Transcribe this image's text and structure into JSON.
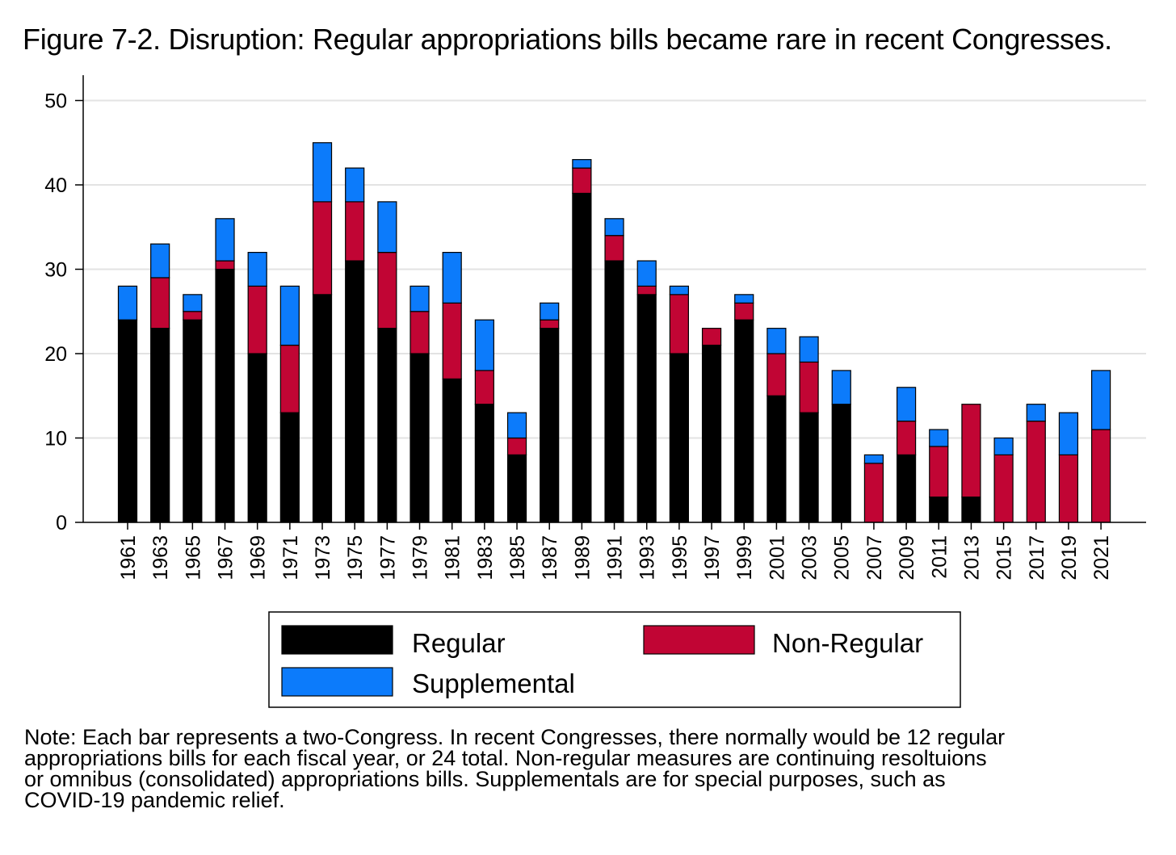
{
  "chart_data": {
    "type": "bar",
    "stacked": true,
    "title": "Figure 7-2. Disruption: Regular appropriations bills became rare in recent Congresses.",
    "xlabel": "",
    "ylabel": "",
    "ylim": [
      0,
      53
    ],
    "yticks": [
      0,
      10,
      20,
      30,
      40,
      50
    ],
    "grid": true,
    "legend_position": "bottom",
    "categories": [
      "1961",
      "1963",
      "1965",
      "1967",
      "1969",
      "1971",
      "1973",
      "1975",
      "1977",
      "1979",
      "1981",
      "1983",
      "1985",
      "1987",
      "1989",
      "1991",
      "1993",
      "1995",
      "1997",
      "1999",
      "2001",
      "2003",
      "2005",
      "2007",
      "2009",
      "2011",
      "2013",
      "2015",
      "2017",
      "2019",
      "2021"
    ],
    "series": [
      {
        "name": "Regular",
        "color": "#000000",
        "values": [
          24,
          23,
          24,
          30,
          20,
          13,
          27,
          31,
          23,
          20,
          17,
          14,
          8,
          23,
          39,
          31,
          27,
          20,
          21,
          24,
          15,
          13,
          14,
          0,
          8,
          3,
          3,
          0,
          0,
          0,
          0
        ]
      },
      {
        "name": "Non-Regular",
        "color": "#c10534",
        "values": [
          0,
          6,
          1,
          1,
          8,
          8,
          11,
          7,
          9,
          5,
          9,
          4,
          2,
          1,
          3,
          3,
          1,
          7,
          2,
          2,
          5,
          6,
          0,
          7,
          4,
          6,
          11,
          8,
          12,
          8,
          11
        ]
      },
      {
        "name": "Supplemental",
        "color": "#0c7bfb",
        "values": [
          4,
          4,
          2,
          5,
          4,
          7,
          7,
          4,
          6,
          3,
          6,
          6,
          3,
          2,
          1,
          2,
          3,
          1,
          0,
          1,
          3,
          3,
          4,
          1,
          4,
          2,
          0,
          2,
          2,
          5,
          7
        ]
      }
    ],
    "note": [
      "Note: Each bar represents a two-Congress. In recent Congresses, there normally would be 12 regular",
      "appropriations bills for each fiscal year, or 24 total. Non-regular measures are continuing resoltuions",
      "or omnibus (consolidated) appropriations bills. Supplementals are for special purposes, such as",
      "COVID-19 pandemic relief."
    ]
  }
}
